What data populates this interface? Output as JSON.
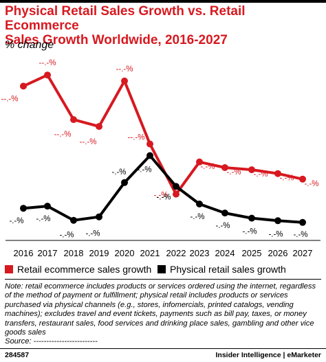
{
  "header": {
    "title_line1": "Physical Retail Sales Growth vs. Retail Ecommerce",
    "title_line2": "Sales Growth Worldwide, 2016-2027",
    "subtitle": "% change"
  },
  "chart_data": {
    "type": "line",
    "title": "Physical Retail Sales Growth vs. Retail Ecommerce Sales Growth Worldwide, 2016-2027",
    "subtitle": "% change",
    "x": [
      "2016",
      "2017",
      "2018",
      "2019",
      "2020",
      "2021",
      "2022",
      "2023",
      "2024",
      "2025",
      "2026",
      "2027"
    ],
    "series": [
      {
        "name": "Retail ecommerce sales growth",
        "color": "#d71920",
        "values": [
          24.0,
          26.6,
          16.2,
          14.6,
          25.2,
          10.5,
          -1.2,
          6.3,
          5.0,
          4.5,
          3.6,
          2.3
        ],
        "labels": [
          "--.-%",
          "--.-%",
          "--.-%",
          "--.-%",
          "--.-%",
          "--.-%",
          "-.-%",
          "-.-%",
          "-.-%",
          "-.-%",
          "-.-%",
          "-.-%"
        ]
      },
      {
        "name": "Physical retail sales growth",
        "color": "#000000",
        "values": [
          -4.5,
          -4.0,
          -7.3,
          -6.5,
          1.5,
          7.8,
          0.6,
          -3.5,
          -5.6,
          -6.8,
          -7.4,
          -7.8
        ],
        "labels": [
          "-.-%",
          "-.-%",
          "-.-%",
          "-.-%",
          "-.-%",
          "-.-%",
          "-.-%",
          "-.-%",
          "-.-%",
          "-.-%",
          "-.-%",
          "-.-%"
        ]
      }
    ],
    "grid": false,
    "legend_position": "bottom"
  },
  "legend": {
    "items": [
      {
        "label": "Retail ecommerce sales growth",
        "color": "#d71920"
      },
      {
        "label": "Physical retail sales growth",
        "color": "#000000"
      }
    ]
  },
  "note": {
    "lines": [
      "Note: retail ecommerce includes products or services ordered using the internet, regardless",
      "of the method of payment or fulfillment; physical retail includes products or services",
      "purchased via physical channels (e.g., stores, infomercials, printed catalogs, vending",
      "machines); excludes travel and event tickets, payments such as bill pay, taxes, or money",
      "transfers, restaurant sales, food services and drinking place sales, gambling and other vice",
      "goods sales",
      "Source: -------------------------"
    ]
  },
  "footer": {
    "id": "284587",
    "brand": "Insider Intelligence | eMarketer"
  }
}
